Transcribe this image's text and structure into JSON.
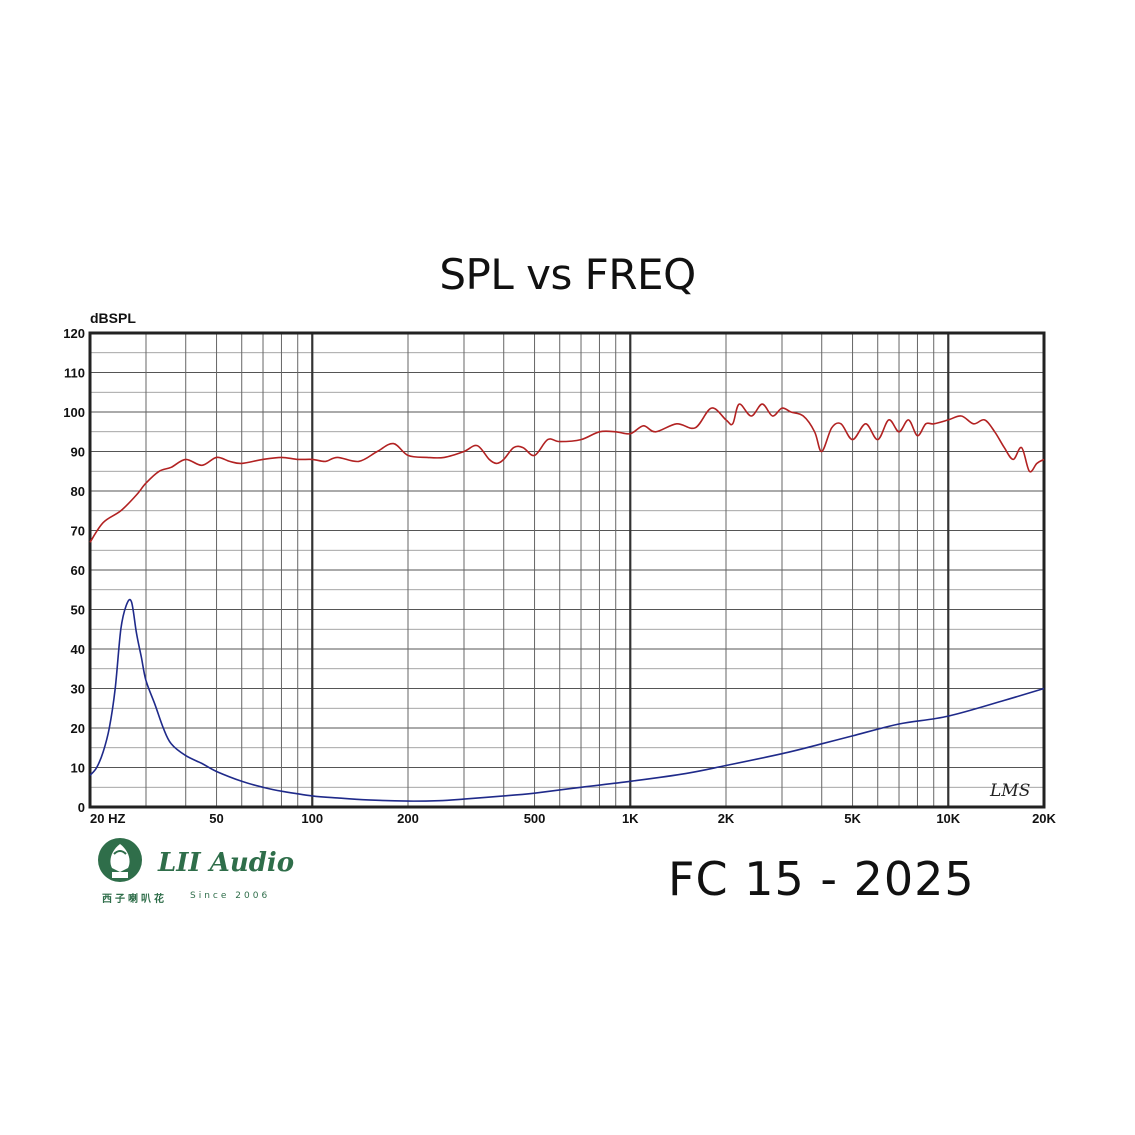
{
  "chart_data": {
    "type": "line",
    "title": "SPL vs FREQ",
    "ylabel": "dBSPL",
    "xscale": "log",
    "xlim": [
      20,
      20000
    ],
    "ylim": [
      0,
      120
    ],
    "grid": true,
    "y_ticks": [
      0,
      10,
      20,
      30,
      40,
      50,
      60,
      70,
      80,
      90,
      100,
      110,
      120
    ],
    "x_ticks": [
      {
        "value": 20,
        "label": "20 HZ"
      },
      {
        "value": 50,
        "label": "50"
      },
      {
        "value": 100,
        "label": "100"
      },
      {
        "value": 200,
        "label": "200"
      },
      {
        "value": 500,
        "label": "500"
      },
      {
        "value": 1000,
        "label": "1K"
      },
      {
        "value": 2000,
        "label": "2K"
      },
      {
        "value": 5000,
        "label": "5K"
      },
      {
        "value": 10000,
        "label": "10K"
      },
      {
        "value": 20000,
        "label": "20K"
      }
    ],
    "series": [
      {
        "color": "#b22222",
        "points": [
          [
            20,
            67
          ],
          [
            22,
            72
          ],
          [
            25,
            75
          ],
          [
            28,
            79
          ],
          [
            30,
            82
          ],
          [
            33,
            85
          ],
          [
            36,
            86
          ],
          [
            40,
            88
          ],
          [
            45,
            86.5
          ],
          [
            50,
            88.5
          ],
          [
            55,
            87.5
          ],
          [
            60,
            87
          ],
          [
            70,
            88
          ],
          [
            80,
            88.5
          ],
          [
            90,
            88
          ],
          [
            100,
            88
          ],
          [
            110,
            87.5
          ],
          [
            120,
            88.5
          ],
          [
            140,
            87.5
          ],
          [
            160,
            90
          ],
          [
            180,
            92
          ],
          [
            200,
            89
          ],
          [
            230,
            88.5
          ],
          [
            260,
            88.5
          ],
          [
            300,
            90
          ],
          [
            330,
            91.5
          ],
          [
            360,
            88
          ],
          [
            380,
            87
          ],
          [
            400,
            88
          ],
          [
            430,
            91
          ],
          [
            460,
            91
          ],
          [
            500,
            89
          ],
          [
            550,
            93
          ],
          [
            600,
            92.5
          ],
          [
            700,
            93
          ],
          [
            800,
            95
          ],
          [
            900,
            95
          ],
          [
            1000,
            94.5
          ],
          [
            1100,
            96.5
          ],
          [
            1200,
            95
          ],
          [
            1400,
            97
          ],
          [
            1600,
            96
          ],
          [
            1800,
            101
          ],
          [
            2000,
            98
          ],
          [
            2100,
            97
          ],
          [
            2200,
            102
          ],
          [
            2400,
            99
          ],
          [
            2600,
            102
          ],
          [
            2800,
            99
          ],
          [
            3000,
            101
          ],
          [
            3200,
            100
          ],
          [
            3500,
            99
          ],
          [
            3800,
            95
          ],
          [
            4000,
            90
          ],
          [
            4300,
            96
          ],
          [
            4600,
            97
          ],
          [
            5000,
            93
          ],
          [
            5500,
            97
          ],
          [
            6000,
            93
          ],
          [
            6500,
            98
          ],
          [
            7000,
            95
          ],
          [
            7500,
            98
          ],
          [
            8000,
            94
          ],
          [
            8500,
            97
          ],
          [
            9000,
            97
          ],
          [
            10000,
            98
          ],
          [
            11000,
            99
          ],
          [
            12000,
            97
          ],
          [
            13000,
            98
          ],
          [
            14000,
            95
          ],
          [
            15000,
            91
          ],
          [
            16000,
            88
          ],
          [
            17000,
            91
          ],
          [
            18000,
            85
          ],
          [
            19000,
            87
          ],
          [
            20000,
            88
          ]
        ]
      },
      {
        "color": "#1f2a8a",
        "points": [
          [
            20,
            8
          ],
          [
            21,
            10
          ],
          [
            22,
            14
          ],
          [
            23,
            20
          ],
          [
            24,
            30
          ],
          [
            25,
            45
          ],
          [
            26,
            51
          ],
          [
            27,
            52
          ],
          [
            28,
            44
          ],
          [
            29,
            38
          ],
          [
            30,
            32
          ],
          [
            32,
            26
          ],
          [
            34,
            20
          ],
          [
            36,
            16
          ],
          [
            40,
            13
          ],
          [
            45,
            11
          ],
          [
            50,
            9
          ],
          [
            60,
            6.5
          ],
          [
            70,
            5
          ],
          [
            80,
            4
          ],
          [
            100,
            2.8
          ],
          [
            120,
            2.3
          ],
          [
            150,
            1.8
          ],
          [
            200,
            1.5
          ],
          [
            250,
            1.6
          ],
          [
            300,
            2
          ],
          [
            400,
            2.8
          ],
          [
            500,
            3.5
          ],
          [
            700,
            5
          ],
          [
            1000,
            6.5
          ],
          [
            1500,
            8.5
          ],
          [
            2000,
            10.5
          ],
          [
            3000,
            13.5
          ],
          [
            4000,
            16
          ],
          [
            5000,
            18
          ],
          [
            7000,
            21
          ],
          [
            10000,
            23
          ],
          [
            15000,
            27
          ],
          [
            20000,
            30
          ]
        ]
      }
    ],
    "watermark": "LMS"
  },
  "footer": {
    "model": "FC 15 - 2025",
    "brand": "LII Audio",
    "brand_cn": "西子喇叭花",
    "since": "Since 2006"
  }
}
